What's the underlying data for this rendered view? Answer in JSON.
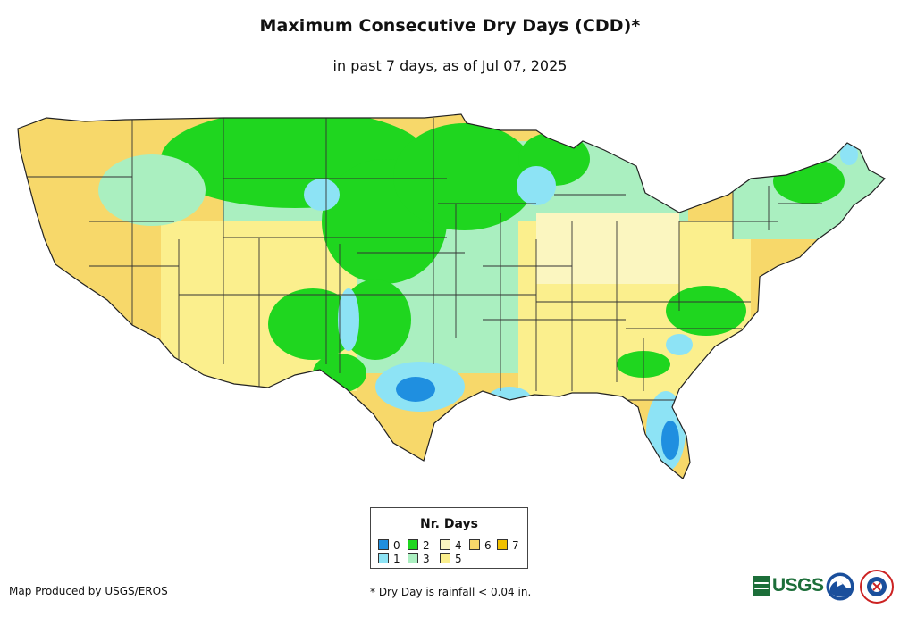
{
  "map": {
    "title": "Maximum Consecutive Dry Days (CDD)*",
    "subtitle": "in past 7 days, as of Jul 07, 2025"
  },
  "legend": {
    "title": "Nr. Days",
    "items": [
      {
        "label": "0",
        "color": "#1f8fe0"
      },
      {
        "label": "1",
        "color": "#8de3f5"
      },
      {
        "label": "2",
        "color": "#1fd61f"
      },
      {
        "label": "3",
        "color": "#aaefc0"
      },
      {
        "label": "4",
        "color": "#fbf6c0"
      },
      {
        "label": "5",
        "color": "#fbef8d"
      },
      {
        "label": "6",
        "color": "#f7d86a"
      },
      {
        "label": "7",
        "color": "#f2c100"
      }
    ]
  },
  "footer": {
    "credit": "Map Produced by USGS/EROS",
    "footnote": "* Dry Day is rainfall < 0.04 in.",
    "usgs_logo_text": "USGS",
    "logos": [
      "usgs-logo",
      "noaa-logo",
      "nws-logo"
    ]
  }
}
